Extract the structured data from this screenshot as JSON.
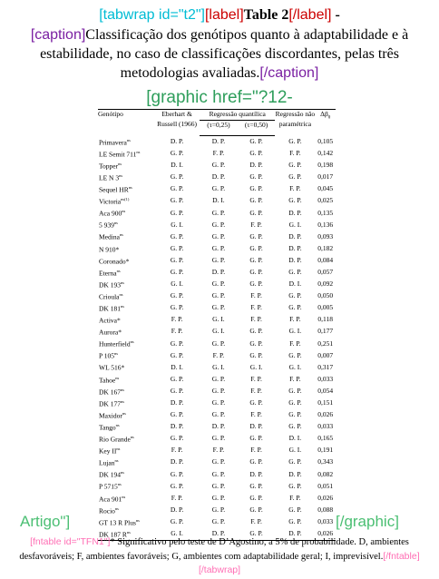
{
  "header": {
    "tabwrap_open": "[tabwrap id=\"t2\"]",
    "label_open": "[label]",
    "label_text": "Table 2",
    "label_close": "[/label]",
    "dash": " -",
    "caption_open": "[caption]",
    "caption_text": "Classificação dos genótipos quanto à adaptabilidade e à estabilidade, no caso de classificações discordantes, pelas três metodologias avaliadas.",
    "caption_close": "[/caption]",
    "graphic_open": "[graphic href=\"?12-",
    "graphic_close_left": "Artigo\"]",
    "graphic_close_right": "[/graphic]"
  },
  "table": {
    "headers": {
      "genotipo": "Genótipo",
      "eberhart": "Eberhart & Russell (1966)",
      "regressao_quantilica": "Regressão quantílica",
      "tau1": "(τ=0,25)",
      "tau2": "(τ=0,50)",
      "regressao_np": "Regressão não paramétrica",
      "delta": "Δβ",
      "delta_sub": "0"
    },
    "rows": [
      {
        "gen": "Primavera",
        "sup": "ns",
        "c1": "D. P.",
        "c2": "D. P.",
        "c3": "G. P.",
        "c4": "G. P.",
        "c5": "0,105"
      },
      {
        "gen": "LE Semit 711",
        "sup": "ns",
        "c1": "G. P.",
        "c2": "F. P.",
        "c3": "G. P.",
        "c4": "F. P.",
        "c5": "0,142"
      },
      {
        "gen": "Topper",
        "sup": "ns",
        "c1": "D. I.",
        "c2": "G. P.",
        "c3": "D. P.",
        "c4": "G. P.",
        "c5": "0,198"
      },
      {
        "gen": "LE N 3",
        "sup": "ns",
        "c1": "G. P.",
        "c2": "D. P.",
        "c3": "G. P.",
        "c4": "G. P.",
        "c5": "0,017"
      },
      {
        "gen": "Sequel HR",
        "sup": "ns",
        "c1": "G. P.",
        "c2": "G. P.",
        "c3": "G. P.",
        "c4": "F. P.",
        "c5": "0,045"
      },
      {
        "gen": "Victoria",
        "sup": "ns(1)",
        "c1": "G. P.",
        "c2": "D. I.",
        "c3": "G. P.",
        "c4": "G. P.",
        "c5": "0,025"
      },
      {
        "gen": "Aca 900",
        "sup": "ns",
        "c1": "G. P.",
        "c2": "G. P.",
        "c3": "G. P.",
        "c4": "D. P.",
        "c5": "0,135"
      },
      {
        "gen": "5 939",
        "sup": "ns",
        "c1": "G. I.",
        "c2": "G. P.",
        "c3": "F. P.",
        "c4": "G. I.",
        "c5": "0,136"
      },
      {
        "gen": "Medina",
        "sup": "ns",
        "c1": "G. P.",
        "c2": "G. P.",
        "c3": "G. P.",
        "c4": "D. P.",
        "c5": "0,093"
      },
      {
        "gen": "N 910*",
        "sup": "",
        "c1": "G. P.",
        "c2": "G. P.",
        "c3": "G. P.",
        "c4": "D. P.",
        "c5": "0,182"
      },
      {
        "gen": "Coronado*",
        "sup": "",
        "c1": "G. P.",
        "c2": "G. P.",
        "c3": "G. P.",
        "c4": "D. P.",
        "c5": "0,084"
      },
      {
        "gen": "Eterna",
        "sup": "ns",
        "c1": "G. P.",
        "c2": "D. P.",
        "c3": "G. P.",
        "c4": "G. P.",
        "c5": "0,057"
      },
      {
        "gen": "DK 193",
        "sup": "ns",
        "c1": "G. I.",
        "c2": "G. P.",
        "c3": "G. P.",
        "c4": "D. I.",
        "c5": "0,092"
      },
      {
        "gen": "Criou­la",
        "sup": "ns",
        "c1": "G. P.",
        "c2": "G. P.",
        "c3": "F. P.",
        "c4": "G. P.",
        "c5": "0,050"
      },
      {
        "gen": "DK 181",
        "sup": "ns",
        "c1": "G. P.",
        "c2": "G. P.",
        "c3": "F. P.",
        "c4": "G. P.",
        "c5": "0,005"
      },
      {
        "gen": "Activa*",
        "sup": "",
        "c1": "F. P.",
        "c2": "G. I.",
        "c3": "F. P.",
        "c4": "F. P.",
        "c5": "0,118"
      },
      {
        "gen": "Aurora*",
        "sup": "",
        "c1": "F. P.",
        "c2": "G. I.",
        "c3": "G. P.",
        "c4": "G. I.",
        "c5": "0,177"
      },
      {
        "gen": "Hunterfield",
        "sup": "ns",
        "c1": "G. P.",
        "c2": "G. P.",
        "c3": "G. P.",
        "c4": "F. P.",
        "c5": "0,251"
      },
      {
        "gen": "P 105",
        "sup": "ns",
        "c1": "G. P.",
        "c2": "F. P.",
        "c3": "G. P.",
        "c4": "G. P.",
        "c5": "0,007"
      },
      {
        "gen": "WL 516*",
        "sup": "",
        "c1": "D. I.",
        "c2": "G. I.",
        "c3": "G. I.",
        "c4": "G. I.",
        "c5": "0,317"
      },
      {
        "gen": "Tahoe",
        "sup": "ns",
        "c1": "G. P.",
        "c2": "G. P.",
        "c3": "F. P.",
        "c4": "F. P.",
        "c5": "0,033"
      },
      {
        "gen": "DK 167",
        "sup": "ns",
        "c1": "G. P.",
        "c2": "G. P.",
        "c3": "F. P.",
        "c4": "G. P.",
        "c5": "0,054"
      },
      {
        "gen": "DK 177",
        "sup": "ns",
        "c1": "D. P.",
        "c2": "G. P.",
        "c3": "G. P.",
        "c4": "G. P.",
        "c5": "0,151"
      },
      {
        "gen": "Maxidor",
        "sup": "ns",
        "c1": "G. P.",
        "c2": "G. P.",
        "c3": "F. P.",
        "c4": "G. P.",
        "c5": "0,026"
      },
      {
        "gen": "Tango",
        "sup": "ns",
        "c1": "D. P.",
        "c2": "D. P.",
        "c3": "D. P.",
        "c4": "G. P.",
        "c5": "0,033"
      },
      {
        "gen": "Rio Grande",
        "sup": "ns",
        "c1": "G. P.",
        "c2": "G. P.",
        "c3": "G. P.",
        "c4": "D. I.",
        "c5": "0,165"
      },
      {
        "gen": "Key II",
        "sup": "ns",
        "c1": "F. P.",
        "c2": "F. P.",
        "c3": "F. P.",
        "c4": "G. I.",
        "c5": "0,191"
      },
      {
        "gen": "Lujan",
        "sup": "ns",
        "c1": "D. P.",
        "c2": "G. P.",
        "c3": "G. P.",
        "c4": "G. P.",
        "c5": "0,343"
      },
      {
        "gen": "DK 194",
        "sup": "ns",
        "c1": "G. P.",
        "c2": "G. P.",
        "c3": "D. P.",
        "c4": "D. P.",
        "c5": "0,082"
      },
      {
        "gen": "P 5715",
        "sup": "ns",
        "c1": "G. P.",
        "c2": "G. P.",
        "c3": "G. P.",
        "c4": "G. P.",
        "c5": "0,051"
      },
      {
        "gen": "Aca 901",
        "sup": "ns",
        "c1": "F. P.",
        "c2": "G. P.",
        "c3": "G. P.",
        "c4": "F. P.",
        "c5": "0,026"
      },
      {
        "gen": "Rocio",
        "sup": "ns",
        "c1": "D. P.",
        "c2": "G. P.",
        "c3": "G. P.",
        "c4": "G. P.",
        "c5": "0,088"
      },
      {
        "gen": "GT 13 R Plus",
        "sup": "ns",
        "c1": "G. P.",
        "c2": "G. P.",
        "c3": "F. P.",
        "c4": "G. P.",
        "c5": "0,033"
      },
      {
        "gen": "DK 187 R",
        "sup": "ns",
        "c1": "G. I.",
        "c2": "D. P.",
        "c3": "G. P.",
        "c4": "D. P.",
        "c5": "0,026"
      }
    ]
  },
  "footnote": {
    "open": "[fntable id=\"TFN1\"]",
    "text": "* Significativo pelo teste de D’Agostino, a 5% de probabilidade. D, ambientes desfavoráveis; F, ambientes favoráveis; G, ambientes com adaptabilidade geral; I, imprevisível.",
    "close1": "[/fntable]",
    "close2": "[/tabwrap]"
  },
  "colors": {
    "cyan": "#00bcd4",
    "red": "#cc0000",
    "purple": "#7a1fa2",
    "green": "#2e9e5b",
    "pink": "#ff6eb4"
  }
}
